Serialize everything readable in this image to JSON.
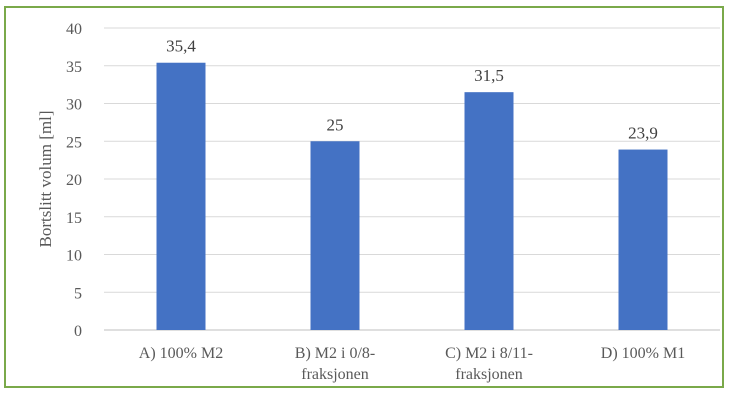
{
  "chart_data": {
    "type": "bar",
    "title": "",
    "xlabel": "",
    "ylabel": "Bortslitt volum [ml]",
    "ylim": [
      0,
      40
    ],
    "ytick_step": 5,
    "grid": true,
    "legend": "none",
    "categories": [
      [
        "A) 100% M2"
      ],
      [
        "B) M2 i 0/8-",
        "fraksjonen"
      ],
      [
        "C) M2 i 8/11-",
        "fraksjonen"
      ],
      [
        "D) 100% M1"
      ]
    ],
    "values": [
      35.4,
      25,
      31.5,
      23.9
    ],
    "data_labels": [
      "35,4",
      "25",
      "31,5",
      "23,9"
    ],
    "bar_color": "#4472c4",
    "frame_color": "#7aa94a"
  }
}
